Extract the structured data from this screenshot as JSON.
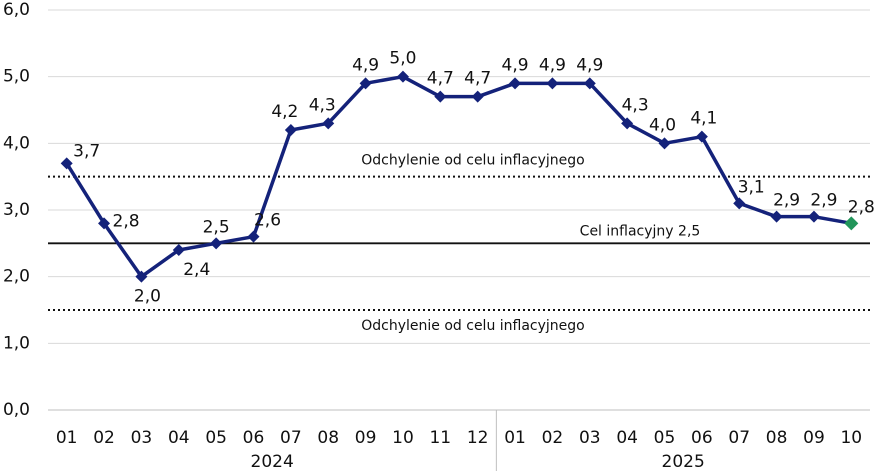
{
  "chart_data": {
    "type": "line",
    "category_groups": [
      {
        "label": "2024",
        "categories": [
          "01",
          "02",
          "03",
          "04",
          "05",
          "06",
          "07",
          "08",
          "09",
          "10",
          "11",
          "12"
        ]
      },
      {
        "label": "2025",
        "categories": [
          "01",
          "02",
          "03",
          "04",
          "05",
          "06",
          "07",
          "08",
          "09",
          "10"
        ]
      }
    ],
    "series": [
      {
        "color": "#14227a",
        "last_point_color": "#21955a",
        "values": [
          3.7,
          2.8,
          2.0,
          2.4,
          2.5,
          2.6,
          4.2,
          4.3,
          4.9,
          5.0,
          4.7,
          4.7,
          4.9,
          4.9,
          4.9,
          4.3,
          4.0,
          4.1,
          3.1,
          2.9,
          2.9,
          2.8
        ],
        "value_labels": [
          "3,7",
          "2,8",
          "2,0",
          "2,4",
          "2,5",
          "2,6",
          "4,2",
          "4,3",
          "4,9",
          "5,0",
          "4,7",
          "4,7",
          "4,9",
          "4,9",
          "4,9",
          "4,3",
          "4,0",
          "4,1",
          "3,1",
          "2,9",
          "2,9",
          "2,8"
        ]
      }
    ],
    "reference_lines": [
      {
        "value": 3.5,
        "label": "Odchylenie od celu inflacyjnego",
        "style": "dotted"
      },
      {
        "value": 2.5,
        "label": "Cel inflacyjny 2,5",
        "style": "solid"
      },
      {
        "value": 1.5,
        "label": "Odchylenie od celu inflacyjnego",
        "style": "dotted"
      }
    ],
    "ylim": [
      0,
      6
    ],
    "yticks": [
      {
        "value": 0,
        "label": "0,0"
      },
      {
        "value": 1,
        "label": "1,0"
      },
      {
        "value": 2,
        "label": "2,0"
      },
      {
        "value": 3,
        "label": "3,0"
      },
      {
        "value": 4,
        "label": "4,0"
      },
      {
        "value": 5,
        "label": "5,0"
      },
      {
        "value": 6,
        "label": "6,0"
      }
    ],
    "grid": true
  }
}
